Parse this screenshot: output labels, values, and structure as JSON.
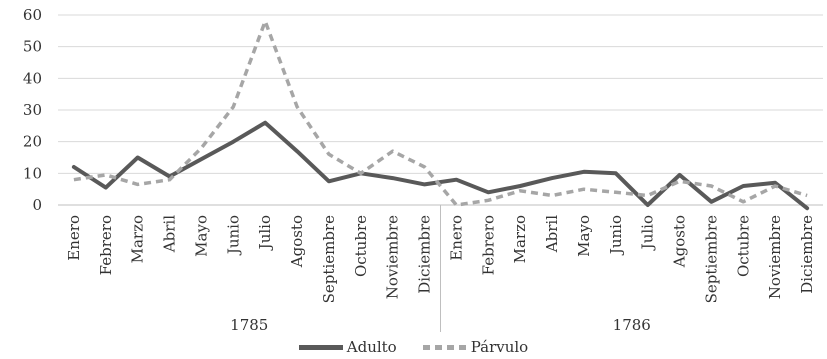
{
  "chart_data": {
    "type": "line",
    "title": "",
    "xlabel": "",
    "ylabel": "",
    "ylim": [
      0,
      60
    ],
    "yticks": [
      0,
      10,
      20,
      30,
      40,
      50,
      60
    ],
    "categories": [
      "Enero",
      "Febrero",
      "Marzo",
      "Abril",
      "Mayo",
      "Junio",
      "Julio",
      "Agosto",
      "Septiembre",
      "Octubre",
      "Noviembre",
      "Diciembre",
      "Enero",
      "Febrero",
      "Marzo",
      "Abril",
      "Mayo",
      "Junio",
      "Julio",
      "Agosto",
      "Septiembre",
      "Octubre",
      "Noviembre",
      "Diciembre"
    ],
    "groups": [
      {
        "label": "1785",
        "count": 12
      },
      {
        "label": "1786",
        "count": 12
      }
    ],
    "grid": true,
    "legend_position": "bottom",
    "series": [
      {
        "name": "Adulto",
        "style": "solid",
        "color": "#595959",
        "values": [
          12,
          5.5,
          15,
          9,
          14.5,
          20,
          26,
          17,
          7.5,
          10,
          8.5,
          6.5,
          8,
          4,
          6,
          8.5,
          10.5,
          10,
          0,
          9.5,
          1,
          6,
          7,
          -1
        ]
      },
      {
        "name": "Párvulo",
        "style": "dashed",
        "color": "#a6a6a6",
        "values": [
          8,
          9.5,
          6.5,
          8,
          18,
          31,
          58,
          31,
          16,
          10,
          17,
          12,
          0,
          1.5,
          4.5,
          3,
          5,
          4,
          3,
          7.5,
          6,
          1,
          6,
          3
        ]
      }
    ]
  }
}
